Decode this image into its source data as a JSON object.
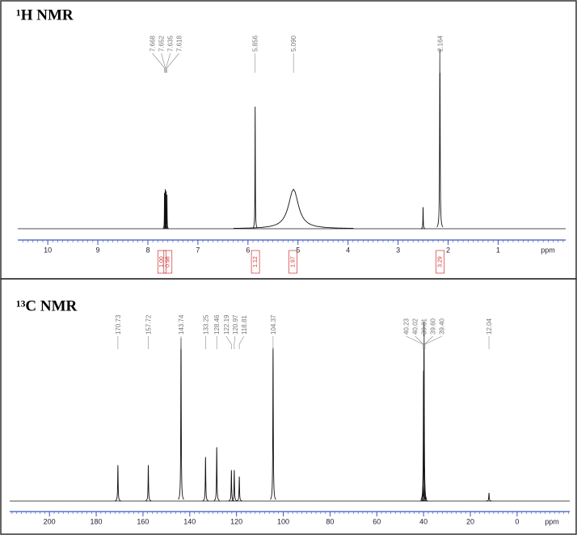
{
  "chart_data": [
    {
      "type": "nmr",
      "title": "¹H NMR",
      "x_label": "ppm",
      "xlim": [
        10.6,
        -0.35
      ],
      "xticks": [
        10,
        9,
        8,
        7,
        6,
        5,
        4,
        3,
        2,
        1
      ],
      "color": "#111111",
      "axis_color": "#3a56c8",
      "integral_color": "#d03030",
      "peaks": [
        {
          "x": 7.668,
          "height": 0.2,
          "width": 0.003
        },
        {
          "x": 7.652,
          "height": 0.22,
          "width": 0.003
        },
        {
          "x": 7.635,
          "height": 0.21,
          "width": 0.003
        },
        {
          "x": 7.618,
          "height": 0.19,
          "width": 0.003
        },
        {
          "x": 5.856,
          "height": 0.68,
          "width": 0.004
        },
        {
          "x": {
            "value": 5.09,
            "label": "5.090"
          },
          "height": 0.22,
          "width": 0.12
        },
        {
          "x": 2.164,
          "height": 1.0,
          "width": 0.006
        }
      ],
      "other_peaks": [
        {
          "x": 2.5,
          "height": 0.12,
          "width": 0.004
        }
      ],
      "integrals": [
        {
          "x": 7.72,
          "value": 1,
          "label": "1.00"
        },
        {
          "x": 7.6,
          "value": 0.98,
          "label": "0.98"
        },
        {
          "x": 5.85,
          "value": 1.12,
          "label": "1.12"
        },
        {
          "x": 5.1,
          "value": 1.97,
          "label": "1.97"
        },
        {
          "x": 2.16,
          "value": 3.29,
          "label": "3.29"
        }
      ]
    },
    {
      "type": "nmr",
      "title": "¹³C NMR",
      "x_label": "ppm",
      "xlim": [
        217,
        -22.5
      ],
      "xticks": [
        200,
        180,
        160,
        140,
        120,
        100,
        80,
        60,
        40,
        20,
        0
      ],
      "color": "#111111",
      "axis_color": "#3a56c8",
      "peaks": [
        {
          "x": 170.73,
          "height": 0.22,
          "width": 0.12
        },
        {
          "x": 157.72,
          "height": 0.22,
          "width": 0.12
        },
        {
          "x": 143.74,
          "height": 1.0,
          "width": 0.12
        },
        {
          "x": 133.25,
          "height": 0.27,
          "width": 0.12
        },
        {
          "x": 128.46,
          "height": 0.33,
          "width": 0.12
        },
        {
          "x": 122.19,
          "height": 0.19,
          "width": 0.12
        },
        {
          "x": 120.97,
          "height": 0.19,
          "width": 0.12
        },
        {
          "x": 118.81,
          "height": 0.15,
          "width": 0.12
        },
        {
          "x": 104.37,
          "height": 0.94,
          "width": 0.12
        },
        {
          "x": 40.23,
          "height": 0.1,
          "width": 0.12
        },
        {
          "x": 40.02,
          "height": 0.8,
          "width": 0.12
        },
        {
          "x": 39.81,
          "height": 1.1,
          "width": 0.12
        },
        {
          "x": {
            "value": 39.6,
            "label": "39.60"
          },
          "height": 0.2,
          "width": 0.12
        },
        {
          "x": {
            "value": 39.4,
            "label": "39.40"
          },
          "height": 0.05,
          "width": 0.12
        },
        {
          "x": 12.04,
          "height": 0.05,
          "width": 0.12
        }
      ]
    }
  ]
}
